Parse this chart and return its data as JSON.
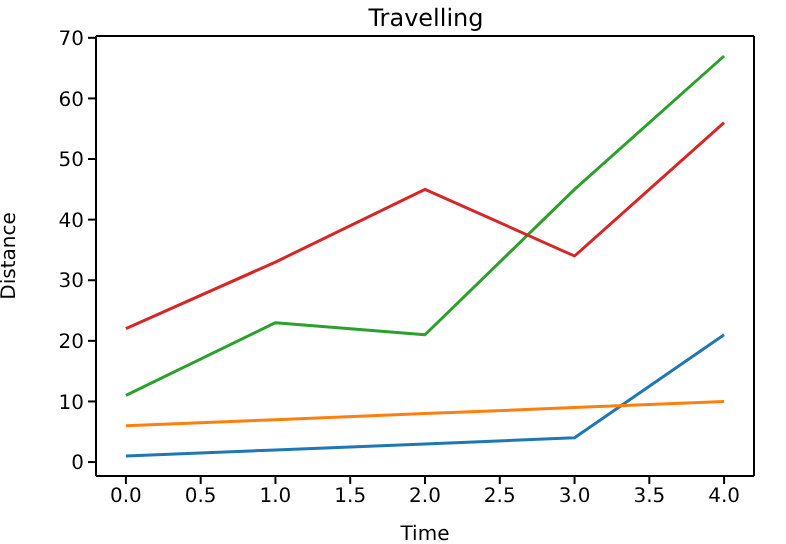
{
  "chart_data": {
    "type": "line",
    "title": "Travelling",
    "xlabel": "Time",
    "ylabel": "Distance",
    "x": [
      0,
      1,
      2,
      3,
      4
    ],
    "series": [
      {
        "color": "#1f77b4",
        "values": [
          1,
          2,
          3,
          4,
          21
        ]
      },
      {
        "color": "#ff7f0e",
        "values": [
          6,
          7,
          8,
          9,
          10
        ]
      },
      {
        "color": "#2ca02c",
        "values": [
          11,
          23,
          21,
          45,
          67
        ]
      },
      {
        "color": "#d62728",
        "values": [
          22,
          33,
          45,
          34,
          56
        ]
      }
    ],
    "xlim": [
      -0.2,
      4.2
    ],
    "xticks": [
      {
        "value": 0,
        "label": "0.0"
      },
      {
        "value": 0.5,
        "label": "0.5"
      },
      {
        "value": 1,
        "label": "1.0"
      },
      {
        "value": 1.5,
        "label": "1.5"
      },
      {
        "value": 2,
        "label": "2.0"
      },
      {
        "value": 2.5,
        "label": "2.5"
      },
      {
        "value": 3,
        "label": "3.0"
      },
      {
        "value": 3.5,
        "label": "3.5"
      },
      {
        "value": 4,
        "label": "4.0"
      }
    ],
    "ylim": [
      -2.3,
      70.3
    ],
    "yticks": [
      0,
      10,
      20,
      30,
      40,
      50,
      60,
      70
    ],
    "grid": false,
    "legend": false,
    "marker": "none",
    "line_style": "solid"
  }
}
